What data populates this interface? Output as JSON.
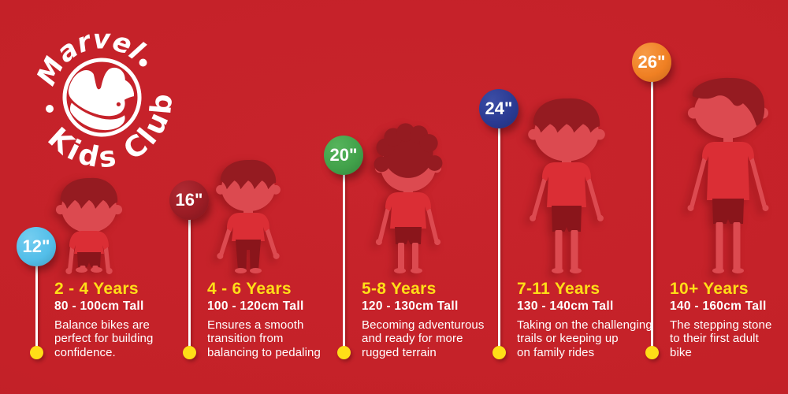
{
  "background_color": "#c42128",
  "accent_yellow": "#ffde17",
  "logo": {
    "line1": "Marvel",
    "line2": "Kids Club"
  },
  "columns": [
    {
      "size": "12\"",
      "marker_color": "#53bee9",
      "marker_color_light": "#74cdf0",
      "age": "2 - 4 Years",
      "height": "80 - 100cm Tall",
      "description": "Balance bikes are perfect for building confidence.",
      "desc_lines": [
        "Balance bikes are",
        "perfect for building",
        "confidence."
      ]
    },
    {
      "size": "16\"",
      "marker_color": "#9a1c24",
      "marker_color_light": "#b02a33",
      "age": "4 - 6 Years",
      "height": "100 - 120cm Tall",
      "description": "Ensures a smooth transition from balancing to pedaling",
      "desc_lines": [
        "Ensures a smooth",
        "transition from",
        "balancing to pedaling"
      ]
    },
    {
      "size": "20\"",
      "marker_color": "#41a14a",
      "marker_color_light": "#57b45c",
      "age": "5-8 Years",
      "height": "120 - 130cm Tall",
      "description": "Becoming adventurous and ready for more rugged terrain",
      "desc_lines": [
        "Becoming adventurous",
        "and ready for more",
        "rugged terrain"
      ]
    },
    {
      "size": "24\"",
      "marker_color": "#2a3a92",
      "marker_color_light": "#3c4da5",
      "age": "7-11 Years",
      "height": "130 - 140cm Tall",
      "description": "Taking on the challenging trails or keeping up on family rides",
      "desc_lines": [
        "Taking on the challenging",
        "trails or keeping up",
        "on family rides"
      ]
    },
    {
      "size": "26\"",
      "marker_color": "#f08023",
      "marker_color_light": "#f79a45",
      "age": "10+ Years",
      "height": "140 - 160cm Tall",
      "description": "The stepping stone to their first adult bike",
      "desc_lines": [
        "The stepping stone",
        "to their first adult",
        "bike"
      ]
    }
  ]
}
